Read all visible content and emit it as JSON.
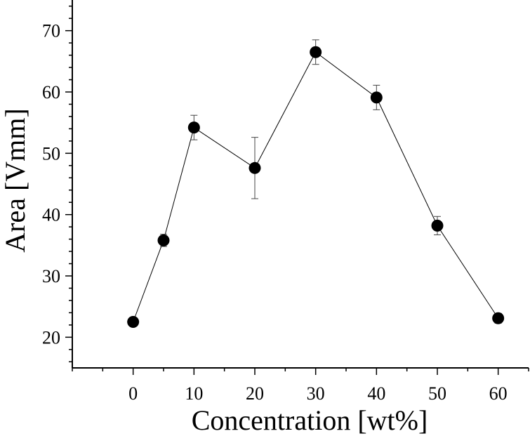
{
  "chart_data": {
    "type": "scatter",
    "xlabel": "Concentration [wt%]",
    "ylabel": "Area [Vmm]",
    "xlim": [
      -10,
      65
    ],
    "ylim": [
      15,
      75
    ],
    "x_ticks": [
      0,
      10,
      20,
      30,
      40,
      50,
      60
    ],
    "y_ticks": [
      20,
      30,
      40,
      50,
      60,
      70
    ],
    "x_minor_step": 5,
    "y_minor_step": 2,
    "grid": false,
    "connected": true,
    "series": [
      {
        "x": [
          0,
          5,
          10,
          20,
          30,
          40,
          50,
          60
        ],
        "y": [
          22.5,
          35.8,
          54.2,
          47.6,
          66.5,
          59.1,
          38.2,
          23.1
        ],
        "err": [
          0.6,
          1.0,
          2.0,
          5.0,
          2.0,
          2.0,
          1.5,
          0.8
        ],
        "color": "#000000",
        "marker": "circle"
      }
    ]
  }
}
